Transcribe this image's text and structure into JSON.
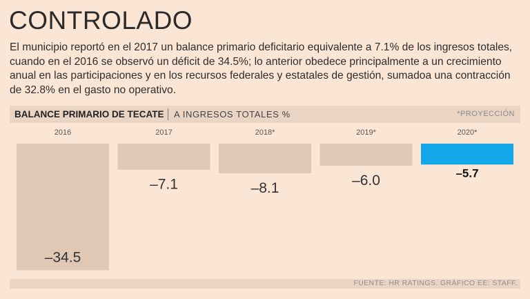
{
  "title": "CONTROLADO",
  "description": "El municipio reportó en el 2017 un balance primario deficitario equivalente a 7.1% de los ingresos totales, cuando en el 2016 se observó un déficit de 34.5%; lo anterior obedece principalmente a un crecimiento anual en las participaciones y en los recursos federales y estatales de gestión, sumadoa una contracción de 32.8% en el gasto no operativo.",
  "header": {
    "chart_title": "BALANCE PRIMARIO DE TECATE",
    "subtitle": "A INGRESOS TOTALES %",
    "note": "*PROYECCIÓN"
  },
  "source": "FUENTE: HR RATINGS. GRÁFICO EE: STAFF.",
  "colors": {
    "bar": "#e1c8b5",
    "highlight": "#12a7e8",
    "background": "#fbe5d5"
  },
  "chart_data": {
    "type": "bar",
    "title": "BALANCE PRIMARIO DE TECATE",
    "ylabel": "A INGRESOS TOTALES %",
    "categories": [
      "2016",
      "2017",
      "2018*",
      "2019*",
      "2020*"
    ],
    "values": [
      -34.5,
      -7.1,
      -8.1,
      -6.0,
      -5.7
    ],
    "labels": [
      "–34.5",
      "–7.1",
      "–8.1",
      "–6.0",
      "–5.7"
    ],
    "highlight_index": 4,
    "ylim": [
      -35,
      0
    ],
    "grid": false
  }
}
